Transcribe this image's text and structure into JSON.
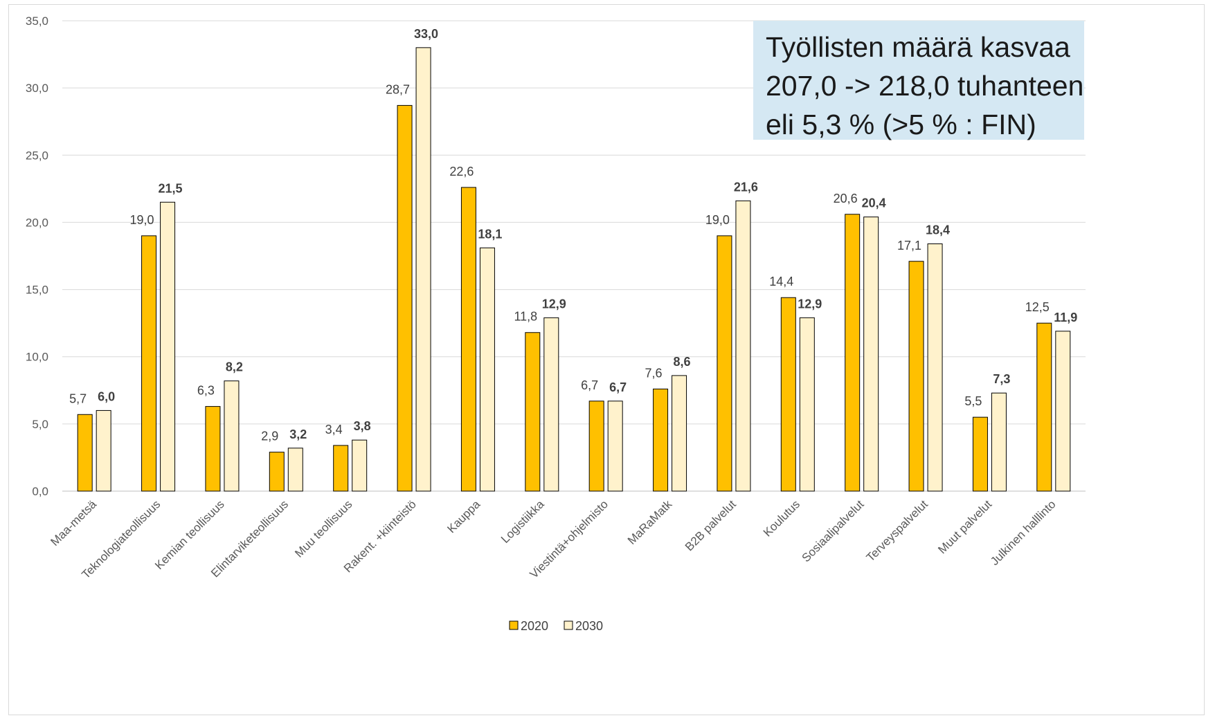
{
  "chart_data": {
    "type": "bar",
    "categories": [
      "Maa-metsä",
      "Teknologiateollisuus",
      "Kemian teollisuus",
      "Elintarviketeollisuus",
      "Muu teollisuus",
      "Rakent. +kiinteistö",
      "Kauppa",
      "Logistiikka",
      "Viestintä+ohjelmisto",
      "MaRaMatk",
      "B2B palvelut",
      "Koulutus",
      "Sosiaalipalvelut",
      "Terveyspalvelut",
      "Muut palvelut",
      "Julkinen halllinto"
    ],
    "series": [
      {
        "name": "2020",
        "color": "#ffc000",
        "values": [
          5.7,
          19.0,
          6.3,
          2.9,
          3.4,
          28.7,
          22.6,
          11.8,
          6.7,
          7.6,
          19.0,
          14.4,
          20.6,
          17.1,
          5.5,
          12.5
        ],
        "labels": [
          "5,7",
          "19,0",
          "6,3",
          "2,9",
          "3,4",
          "28,7",
          "22,6",
          "11,8",
          "6,7",
          "7,6",
          "19,0",
          "14,4",
          "20,6",
          "17,1",
          "5,5",
          "12,5"
        ]
      },
      {
        "name": "2030",
        "color": "#fff2cc",
        "values": [
          6.0,
          21.5,
          8.2,
          3.2,
          3.8,
          33.0,
          18.1,
          12.9,
          6.7,
          8.6,
          21.6,
          12.9,
          20.4,
          18.4,
          7.3,
          11.9
        ],
        "labels": [
          "6,0",
          "21,5",
          "8,2",
          "3,2",
          "3,8",
          "33,0",
          "18,1",
          "12,9",
          "6,7",
          "8,6",
          "21,6",
          "12,9",
          "20,4",
          "18,4",
          "7,3",
          "11,9"
        ]
      }
    ],
    "yticks": [
      "0,0",
      "5,0",
      "10,0",
      "15,0",
      "20,0",
      "25,0",
      "30,0",
      "35,0"
    ],
    "ylim": [
      0,
      35
    ],
    "grid": true,
    "legend_position": "bottom-center",
    "annotation": [
      "Työllisten määrä kasvaa",
      "207,0 -> 218,0 tuhanteen",
      "eli 5,3 % (>5 % : FIN)"
    ]
  }
}
